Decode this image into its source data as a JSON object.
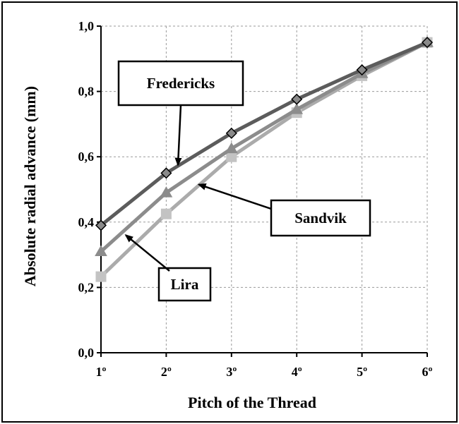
{
  "chart_data": {
    "type": "line",
    "title": "",
    "xlabel": "Pitch of the Thread",
    "ylabel": "Absolute radial advance (mm)",
    "categories": [
      "1º",
      "2º",
      "3º",
      "4º",
      "5º",
      "6º"
    ],
    "y_ticks": [
      "0,0",
      "0,2",
      "0,4",
      "0,6",
      "0,8",
      "1,0"
    ],
    "ylim": [
      0,
      1.0
    ],
    "grid": true,
    "series": [
      {
        "name": "Fredericks",
        "marker": "diamond",
        "color": "#5c5c5c",
        "marker_fill": "#8a8a8a",
        "values": [
          0.39,
          0.55,
          0.672,
          0.776,
          0.866,
          0.95
        ]
      },
      {
        "name": "Sandvik",
        "marker": "triangle",
        "color": "#8c8c8c",
        "marker_fill": "#8c8c8c",
        "values": [
          0.31,
          0.49,
          0.625,
          0.745,
          0.855,
          0.95
        ]
      },
      {
        "name": "Lira",
        "marker": "square",
        "color": "#ababab",
        "marker_fill": "#c3c3c3",
        "values": [
          0.233,
          0.425,
          0.6,
          0.735,
          0.848,
          0.95
        ]
      }
    ],
    "annotations": [
      "Fredericks",
      "Sandvik",
      "Lira"
    ]
  }
}
